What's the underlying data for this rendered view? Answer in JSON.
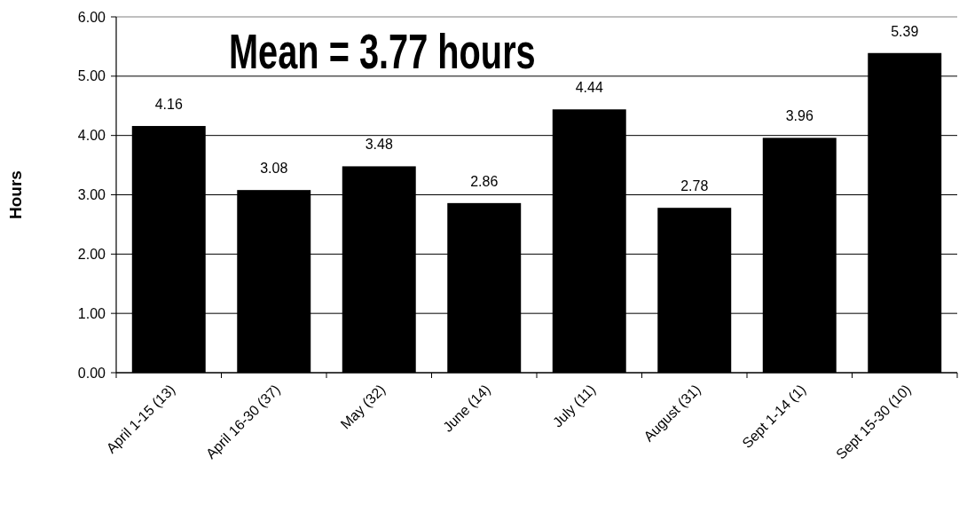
{
  "chart_data": {
    "type": "bar",
    "categories": [
      "April 1-15 (13)",
      "April 16-30 (37)",
      "May (32)",
      "June (14)",
      "July (11)",
      "August (31)",
      "Sept 1-14 (1)",
      "Sept 15-30 (10)"
    ],
    "values": [
      4.16,
      3.08,
      3.48,
      2.86,
      4.44,
      2.78,
      3.96,
      5.39
    ],
    "color": "#000000",
    "ylabel": "Hours",
    "ylim": [
      0,
      6
    ],
    "yticks": [
      {
        "value": 0,
        "label": "0.00"
      },
      {
        "value": 1,
        "label": "1.00"
      },
      {
        "value": 2,
        "label": "2.00"
      },
      {
        "value": 3,
        "label": "3.00"
      },
      {
        "value": 4,
        "label": "4.00"
      },
      {
        "value": 5,
        "label": "5.00"
      },
      {
        "value": 6,
        "label": "6.00"
      }
    ],
    "grid": "y",
    "data_labels": true,
    "annotations": [
      "Mean = 3.77 hours"
    ]
  }
}
